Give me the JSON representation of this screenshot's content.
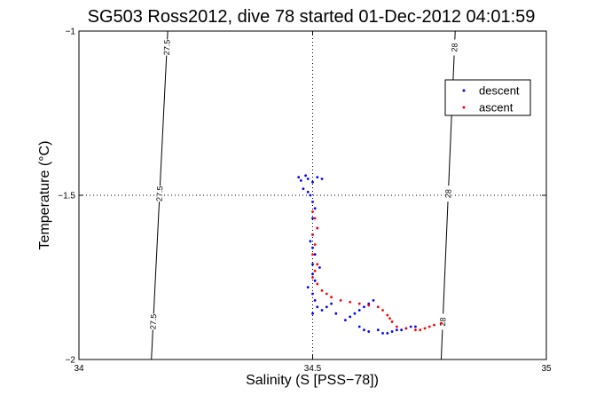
{
  "chart_data": {
    "type": "scatter",
    "title": "SG503 Ross2012, dive 78 started 01-Dec-2012 04:01:59",
    "xlabel": "Salinity (S [PSS−78])",
    "ylabel": "Temperature (°C)",
    "xlim": [
      34,
      35
    ],
    "ylim": [
      -2,
      -1
    ],
    "x_ticks": [
      34,
      34.5,
      35
    ],
    "x_tick_labels": [
      "34",
      "34.5",
      "35"
    ],
    "y_ticks": [
      -2,
      -1.5,
      -1
    ],
    "y_tick_labels": [
      "−2",
      "−1.5",
      "−1"
    ],
    "grid": true,
    "legend_position": "top-right",
    "isopycnals": [
      {
        "label": "27.5",
        "points": [
          [
            34.19,
            -1
          ],
          [
            34.155,
            -2
          ]
        ]
      },
      {
        "label": "28",
        "points": [
          [
            34.805,
            -1
          ],
          [
            34.775,
            -2
          ]
        ]
      }
    ],
    "series": [
      {
        "name": "descent",
        "color": "#0000ff",
        "x": [
          34.47,
          34.475,
          34.485,
          34.49,
          34.5,
          34.51,
          34.52,
          34.48,
          34.49,
          34.495,
          34.5,
          34.505,
          34.5,
          34.51,
          34.5,
          34.495,
          34.5,
          34.505,
          34.5,
          34.515,
          34.5,
          34.505,
          34.49,
          34.5,
          34.505,
          34.51,
          34.5,
          34.52,
          34.53,
          34.54,
          34.55,
          34.57,
          34.58,
          34.59,
          34.6,
          34.61,
          34.62,
          34.63,
          34.6,
          34.61,
          34.62,
          34.64,
          34.65,
          34.66,
          34.67,
          34.68,
          34.69,
          34.7,
          34.71,
          34.72
        ],
        "y": [
          -1.445,
          -1.455,
          -1.44,
          -1.45,
          -1.46,
          -1.445,
          -1.45,
          -1.48,
          -1.49,
          -1.5,
          -1.52,
          -1.54,
          -1.57,
          -1.6,
          -1.62,
          -1.64,
          -1.66,
          -1.68,
          -1.71,
          -1.72,
          -1.74,
          -1.76,
          -1.78,
          -1.8,
          -1.82,
          -1.84,
          -1.86,
          -1.85,
          -1.84,
          -1.83,
          -1.86,
          -1.88,
          -1.87,
          -1.86,
          -1.85,
          -1.84,
          -1.83,
          -1.82,
          -1.9,
          -1.91,
          -1.915,
          -1.91,
          -1.92,
          -1.92,
          -1.915,
          -1.91,
          -1.91,
          -1.905,
          -1.9,
          -1.9
        ]
      },
      {
        "name": "ascent",
        "color": "#ff0000",
        "x": [
          34.5,
          34.505,
          34.51,
          34.5,
          34.505,
          34.5,
          34.51,
          34.505,
          34.5,
          34.51,
          34.52,
          34.53,
          34.54,
          34.56,
          34.58,
          34.6,
          34.62,
          34.64,
          34.65,
          34.66,
          34.665,
          34.67,
          34.68,
          34.7,
          34.72,
          34.73,
          34.74,
          34.75,
          34.76,
          34.775
        ],
        "y": [
          -1.55,
          -1.57,
          -1.6,
          -1.62,
          -1.65,
          -1.68,
          -1.71,
          -1.73,
          -1.75,
          -1.77,
          -1.79,
          -1.8,
          -1.81,
          -1.82,
          -1.825,
          -1.83,
          -1.835,
          -1.84,
          -1.85,
          -1.865,
          -1.875,
          -1.885,
          -1.9,
          -1.905,
          -1.91,
          -1.91,
          -1.905,
          -1.9,
          -1.895,
          -1.89
        ]
      }
    ]
  }
}
